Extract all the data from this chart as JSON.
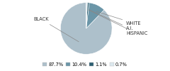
{
  "labels": [
    "BLACK",
    "WHITE",
    "A.I.",
    "HISPANIC"
  ],
  "sizes": [
    87.7,
    10.4,
    1.1,
    0.7
  ],
  "colors": [
    "#adc0cb",
    "#6b96a8",
    "#2d5f72",
    "#dce8ee"
  ],
  "legend_labels": [
    "87.7%",
    "10.4%",
    "1.1%",
    "0.7%"
  ],
  "startangle": 90,
  "label_fontsize": 4.8,
  "legend_fontsize": 4.8
}
